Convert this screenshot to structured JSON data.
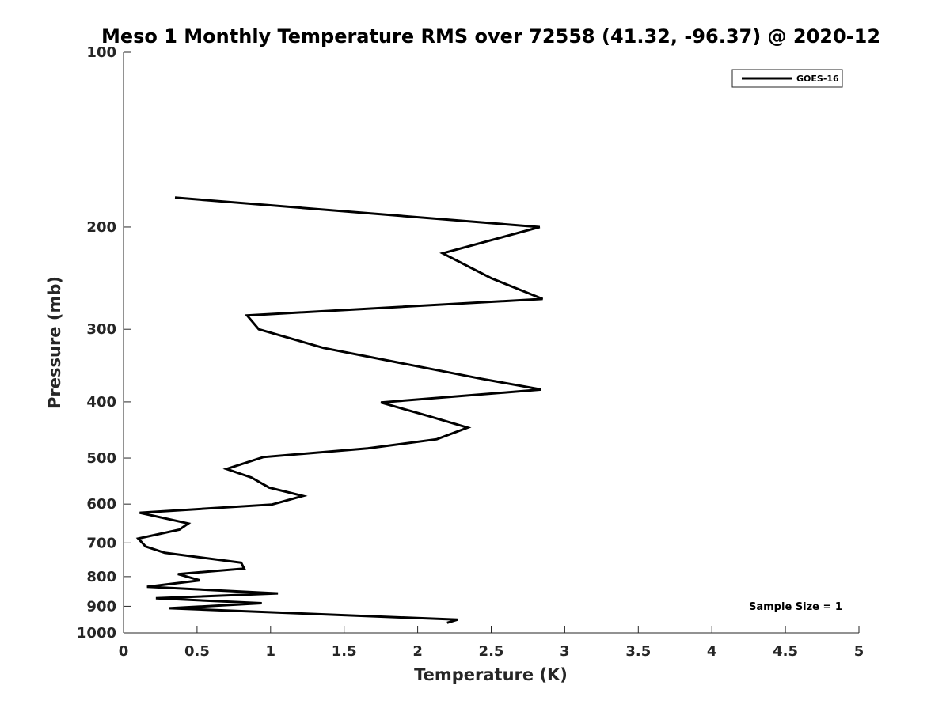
{
  "chart_data": {
    "type": "line",
    "title": "Meso 1 Monthly Temperature RMS over 72558 (41.32, -96.37) @ 2020-12",
    "xlabel": "Temperature (K)",
    "ylabel": "Pressure (mb)",
    "xlim": [
      0,
      5
    ],
    "ylim": [
      100,
      1000
    ],
    "y_scale": "log",
    "y_reversed": true,
    "xticks": [
      0,
      0.5,
      1,
      1.5,
      2,
      2.5,
      3,
      3.5,
      4,
      4.5,
      5
    ],
    "xtick_labels": [
      "0",
      "0.5",
      "1",
      "1.5",
      "2",
      "2.5",
      "3",
      "3.5",
      "4",
      "4.5",
      "5"
    ],
    "yticks": [
      100,
      200,
      300,
      400,
      500,
      600,
      700,
      800,
      900,
      1000
    ],
    "ytick_labels": [
      "100",
      "200",
      "300",
      "400",
      "500",
      "600",
      "700",
      "800",
      "900",
      "1000"
    ],
    "grid": false,
    "legend_position": "top-right",
    "annotation": "Sample Size = 1",
    "series": [
      {
        "name": "GOES-16",
        "color": "#000000",
        "points": [
          [
            0.35,
            178
          ],
          [
            2.83,
            200
          ],
          [
            2.17,
            222
          ],
          [
            2.5,
            245
          ],
          [
            2.85,
            266
          ],
          [
            0.84,
            284
          ],
          [
            0.92,
            300
          ],
          [
            1.36,
            323
          ],
          [
            2.43,
            365
          ],
          [
            2.84,
            381
          ],
          [
            1.75,
            401
          ],
          [
            2.07,
            423
          ],
          [
            2.34,
            443
          ],
          [
            2.13,
            464
          ],
          [
            1.66,
            481
          ],
          [
            0.95,
            498
          ],
          [
            0.7,
            522
          ],
          [
            0.87,
            540
          ],
          [
            0.99,
            562
          ],
          [
            1.22,
            581
          ],
          [
            1.01,
            601
          ],
          [
            0.11,
            621
          ],
          [
            0.44,
            648
          ],
          [
            0.38,
            664
          ],
          [
            0.1,
            688
          ],
          [
            0.15,
            710
          ],
          [
            0.28,
            728
          ],
          [
            0.8,
            757
          ],
          [
            0.82,
            775
          ],
          [
            0.37,
            792
          ],
          [
            0.52,
            812
          ],
          [
            0.16,
            833
          ],
          [
            1.05,
            855
          ],
          [
            0.22,
            872
          ],
          [
            0.94,
            889
          ],
          [
            0.31,
            907
          ],
          [
            2.27,
            949
          ],
          [
            2.2,
            961
          ]
        ]
      }
    ]
  }
}
